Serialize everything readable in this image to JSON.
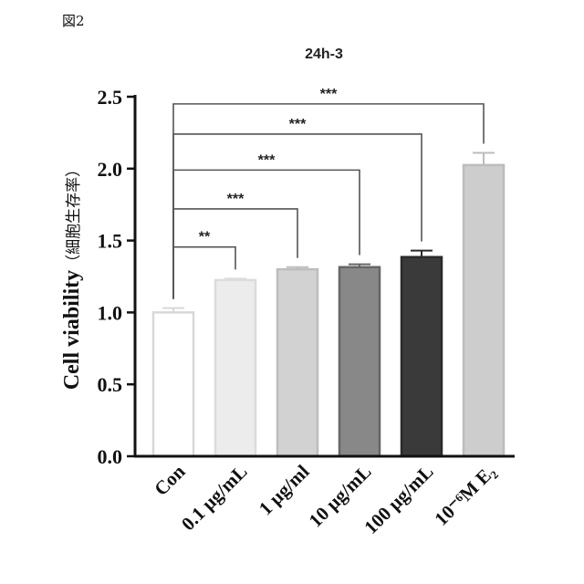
{
  "figure_label": "図2",
  "chart_data": {
    "type": "bar",
    "title": "24h-3",
    "ylabel": "Cell viability",
    "ylabel_jp": "（細胞生存率）",
    "xlabel": "",
    "categories": [
      "Con",
      "0.1 µg/mL",
      "1 µg/ml",
      "10 µg/mL",
      "100 µg/mL",
      "10⁻⁶M E₂"
    ],
    "values": [
      1.0,
      1.225,
      1.3,
      1.315,
      1.385,
      2.025
    ],
    "errors": [
      0.03,
      0.01,
      0.015,
      0.02,
      0.045,
      0.085
    ],
    "ylim": [
      0,
      2.5
    ],
    "yticks": [
      0.0,
      0.5,
      1.0,
      1.5,
      2.0,
      2.5
    ],
    "ytick_labels": [
      "0.0",
      "0.5",
      "1.0",
      "1.5",
      "2.0",
      "2.5"
    ],
    "grid": false,
    "legend": "none",
    "bar_colors": [
      "#ffffff",
      "#ececec",
      "#d2d2d2",
      "#888888",
      "#3a3a3a",
      "#cdcdcd"
    ],
    "bar_edge_colors": [
      "#d8d8d8",
      "#dcdcdc",
      "#bdbdbd",
      "#666666",
      "#2a2a2a",
      "#bcbcbc"
    ],
    "significance": [
      {
        "from": 0,
        "to": 1,
        "label": "**",
        "level": 1.455
      },
      {
        "from": 0,
        "to": 2,
        "label": "***",
        "level": 1.72
      },
      {
        "from": 0,
        "to": 3,
        "label": "***",
        "level": 1.99
      },
      {
        "from": 0,
        "to": 4,
        "label": "***",
        "level": 2.24
      },
      {
        "from": 0,
        "to": 5,
        "label": "***",
        "level": 2.45
      }
    ]
  }
}
